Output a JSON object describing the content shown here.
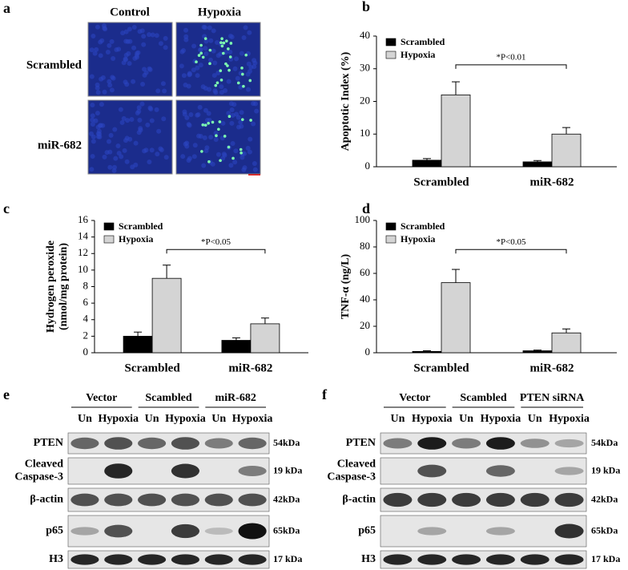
{
  "panel_a": {
    "panel_label": "a",
    "columns": [
      "Control",
      "Hypoxia"
    ],
    "rows": [
      "Scrambled",
      "miR-682"
    ]
  },
  "chart_data": [
    {
      "type": "bar",
      "panel_label": "b",
      "ylabel": [
        "Apoptotic Index (%)"
      ],
      "categories": [
        "Scrambled",
        "miR-682"
      ],
      "series": [
        {
          "name": "Scrambled",
          "color": "#000000",
          "values": [
            2,
            1.5
          ],
          "errors": [
            0.5,
            0.4
          ]
        },
        {
          "name": "Hypoxia",
          "color": "#d4d4d4",
          "values": [
            22,
            10
          ],
          "errors": [
            4,
            2
          ]
        }
      ],
      "ylim": [
        0,
        40
      ],
      "yticks": [
        0,
        10,
        20,
        30,
        40
      ],
      "annotation": "*P<0.01"
    },
    {
      "type": "bar",
      "panel_label": "c",
      "ylabel": [
        "Hydrogen peroxide",
        "(nmol/mg protein)"
      ],
      "categories": [
        "Scrambled",
        "miR-682"
      ],
      "series": [
        {
          "name": "Scrambled",
          "color": "#000000",
          "values": [
            2,
            1.5
          ],
          "errors": [
            0.5,
            0.3
          ]
        },
        {
          "name": "Hypoxia",
          "color": "#d4d4d4",
          "values": [
            9,
            3.5
          ],
          "errors": [
            1.6,
            0.7
          ]
        }
      ],
      "ylim": [
        0,
        16
      ],
      "yticks": [
        0,
        2,
        4,
        6,
        8,
        10,
        12,
        14,
        16
      ],
      "annotation": "*P<0.05"
    },
    {
      "type": "bar",
      "panel_label": "d",
      "ylabel": [
        "TNF-α (ng/L)"
      ],
      "categories": [
        "Scrambled",
        "miR-682"
      ],
      "series": [
        {
          "name": "Scrambled",
          "color": "#000000",
          "values": [
            1,
            1.5
          ],
          "errors": [
            0.5,
            0.5
          ]
        },
        {
          "name": "Hypoxia",
          "color": "#d4d4d4",
          "values": [
            53,
            15
          ],
          "errors": [
            10,
            3
          ]
        }
      ],
      "ylim": [
        0,
        100
      ],
      "yticks": [
        0,
        20,
        40,
        60,
        80,
        100
      ],
      "annotation": "*P<0.05"
    }
  ],
  "panel_e": {
    "panel_label": "e",
    "groups": [
      "Vector",
      "Scambled",
      "miR-682"
    ],
    "lanes": [
      "Un",
      "Hypoxia",
      "Un",
      "Hypoxia",
      "Un",
      "Hypoxia"
    ],
    "rows": [
      {
        "label": [
          "PTEN"
        ],
        "size": "54kDa"
      },
      {
        "label": [
          "Cleaved",
          "Caspase-3"
        ],
        "size": "19 kDa"
      },
      {
        "label": [
          "β-actin"
        ],
        "size": "42kDa"
      },
      {
        "label": [
          "p65"
        ],
        "size": "65kDa"
      },
      {
        "label": [
          "H3"
        ],
        "size": "17 kDa"
      }
    ]
  },
  "panel_f": {
    "panel_label": "f",
    "groups": [
      "Vector",
      "Scambled",
      "PTEN siRNA"
    ],
    "lanes": [
      "Un",
      "Hypoxia",
      "Un",
      "Hypoxia",
      "Un",
      "Hypoxia"
    ],
    "rows": [
      {
        "label": [
          "PTEN"
        ],
        "size": "54kDa"
      },
      {
        "label": [
          "Cleaved",
          "Caspase-3"
        ],
        "size": "19 kDa"
      },
      {
        "label": [
          "β-actin"
        ],
        "size": "42kDa"
      },
      {
        "label": [
          "p65"
        ],
        "size": "65kDa"
      },
      {
        "label": [
          "H3"
        ],
        "size": "17 kDa"
      }
    ]
  }
}
